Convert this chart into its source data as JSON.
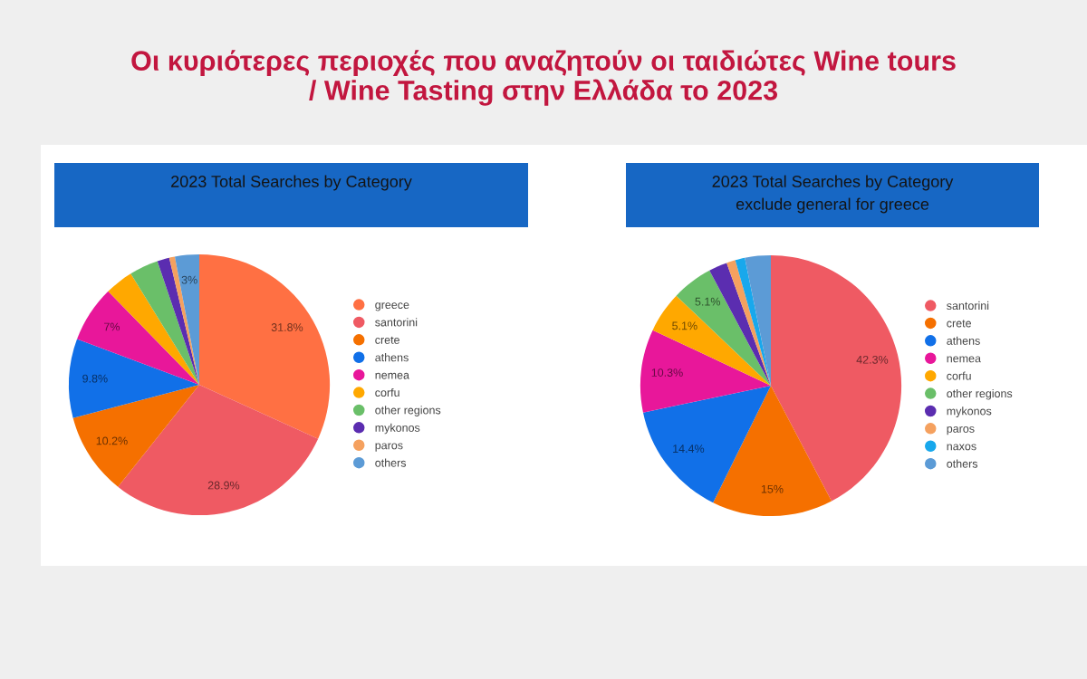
{
  "chart_data": [
    {
      "type": "pie",
      "title": "2023 Total Searches by Category",
      "categories": [
        "greece",
        "santorini",
        "crete",
        "athens",
        "nemea",
        "corfu",
        "other regions",
        "mykonos",
        "paros",
        "others"
      ],
      "values": [
        31.8,
        28.9,
        10.2,
        9.8,
        7,
        3.5,
        3.6,
        1.5,
        0.7,
        3
      ],
      "colors": [
        "#ff7043",
        "#ef5a63",
        "#f57000",
        "#1170e8",
        "#e8179a",
        "#ffa800",
        "#6abf69",
        "#5b2db0",
        "#f5a15f",
        "#5c9bd6"
      ],
      "value_labels": [
        "31.8%",
        "28.9%",
        "10.2%",
        "9.8%",
        "7%",
        null,
        null,
        null,
        null,
        "3%"
      ],
      "legend": "right",
      "annotations": [
        "Οι κυριότερες περιοχές που αναζητούν οι ταιδιώτες Wine tours\n/ Wine Tasting στην Ελλάδα το 2023"
      ]
    },
    {
      "type": "pie",
      "title": "2023 Total Searches by Category",
      "subtitle": "exclude general for greece",
      "categories": [
        "santorini",
        "crete",
        "athens",
        "nemea",
        "corfu",
        "other regions",
        "mykonos",
        "paros",
        "naxos",
        "others"
      ],
      "values": [
        42.3,
        15,
        14.4,
        10.3,
        5.1,
        5.1,
        2.3,
        1.1,
        1.2,
        3.2
      ],
      "colors": [
        "#ef5a63",
        "#f57000",
        "#1170e8",
        "#e8179a",
        "#ffa800",
        "#6abf69",
        "#5b2db0",
        "#f5a15f",
        "#18a8ec",
        "#5c9bd6"
      ],
      "value_labels": [
        "42.3%",
        "15%",
        "14.4%",
        "10.3%",
        "5.1%",
        "5.1%",
        null,
        null,
        null,
        null
      ],
      "legend": "right"
    }
  ]
}
